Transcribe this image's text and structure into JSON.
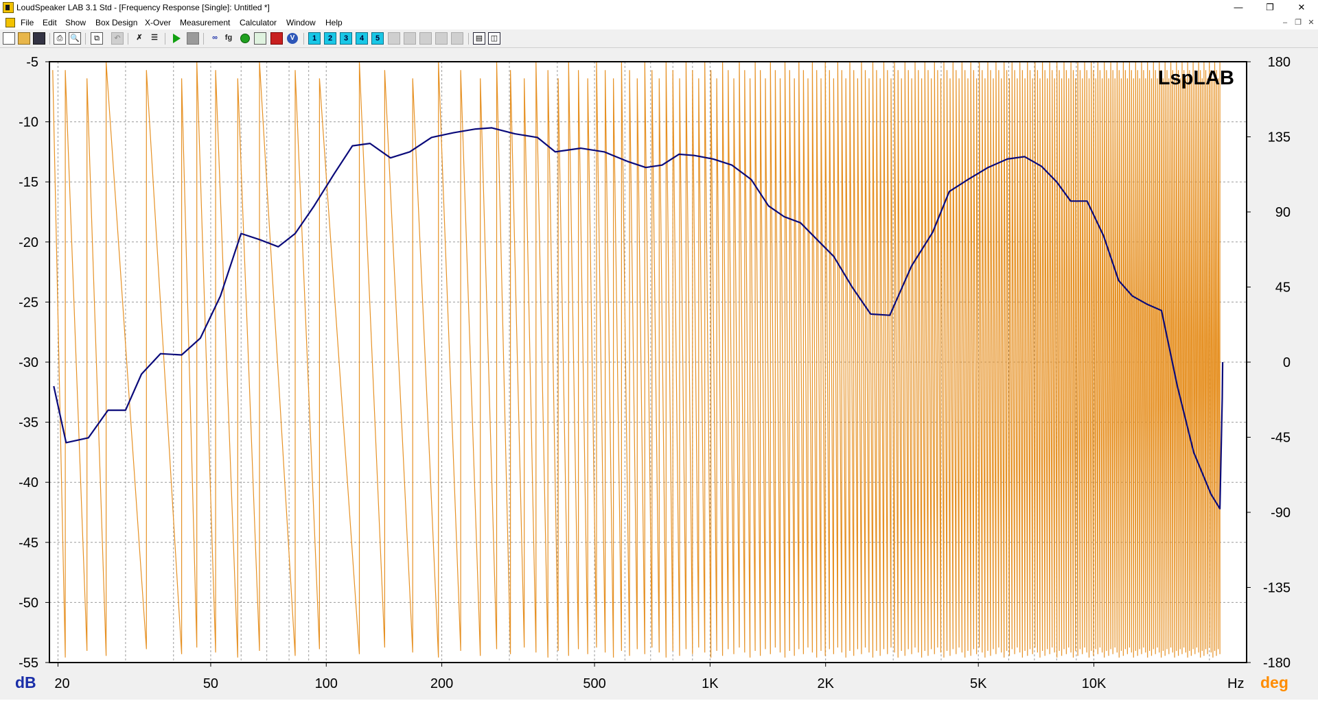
{
  "window": {
    "title": "LoudSpeaker LAB 3.1 Std - [Frequency Response [Single]: Untitled *]",
    "controls": {
      "minimize": "—",
      "restore": "❐",
      "close": "✕"
    }
  },
  "menu": {
    "items": [
      "File",
      "Edit",
      "Show",
      "Box Design",
      "X-Over",
      "Measurement",
      "Calculator",
      "Window",
      "Help"
    ],
    "mdi_controls": {
      "minimize": "–",
      "restore": "❐",
      "close": "✕"
    }
  },
  "toolbar": {
    "icons": [
      "new-icon",
      "open-icon",
      "save-icon",
      "print-icon",
      "print-preview-icon",
      "copy-icon",
      "undo-icon",
      "tools-icon",
      "sliders-icon",
      "play-icon",
      "stop-icon",
      "impedance-icon",
      "fs-icon",
      "circle-icon",
      "step-response-icon",
      "waterfall-icon",
      "v-icon",
      "slot-1",
      "slot-2",
      "slot-3",
      "slot-4",
      "slot-5",
      "slot-6",
      "slot-7",
      "slot-8",
      "slot-9",
      "slot-10",
      "layout-horizontal-icon",
      "layout-vertical-icon"
    ],
    "slot_labels": [
      "1",
      "2",
      "3",
      "4",
      "5"
    ],
    "fg_label": "fg"
  },
  "chart_data": {
    "type": "line",
    "watermark": "LspLAB",
    "x_scale": "log",
    "x_unit": "Hz",
    "xlim": [
      19,
      25000
    ],
    "x_ticks": [
      20,
      50,
      100,
      200,
      500,
      1000,
      2000,
      5000,
      10000
    ],
    "x_tick_labels": [
      "20",
      "50",
      "100",
      "200",
      "500",
      "1K",
      "2K",
      "5K",
      "10K"
    ],
    "y_left_unit": "dB",
    "ylim_left": [
      -55,
      -5
    ],
    "y_left_ticks": [
      -5,
      -10,
      -15,
      -20,
      -25,
      -30,
      -35,
      -40,
      -45,
      -50,
      -55
    ],
    "y_right_unit": "deg",
    "ylim_right": [
      -180,
      180
    ],
    "y_right_ticks": [
      180,
      135,
      90,
      45,
      0,
      -45,
      -90,
      -135,
      -180
    ],
    "grid": true,
    "colors": {
      "magnitude": "#0a0a7a",
      "phase": "#e69124",
      "dB_label": "#1a2ea8",
      "deg_label": "#ff8c00",
      "plot_background": "#ffffff",
      "grid": "#9a9a9a"
    },
    "series": [
      {
        "unit": "dB",
        "axis": "left",
        "points": [
          [
            19.5,
            -32
          ],
          [
            21,
            -36.7
          ],
          [
            24,
            -36.3
          ],
          [
            27,
            -34
          ],
          [
            30,
            -34
          ],
          [
            33,
            -31
          ],
          [
            37,
            -29.3
          ],
          [
            42,
            -29.4
          ],
          [
            47,
            -28
          ],
          [
            53,
            -24.5
          ],
          [
            60,
            -19.3
          ],
          [
            67,
            -19.8
          ],
          [
            75,
            -20.4
          ],
          [
            83,
            -19.3
          ],
          [
            93,
            -17
          ],
          [
            105,
            -14.3
          ],
          [
            117,
            -12
          ],
          [
            130,
            -11.8
          ],
          [
            147,
            -13
          ],
          [
            165,
            -12.5
          ],
          [
            188,
            -11.3
          ],
          [
            215,
            -10.9
          ],
          [
            245,
            -10.6
          ],
          [
            270,
            -10.5
          ],
          [
            310,
            -11
          ],
          [
            355,
            -11.3
          ],
          [
            395,
            -12.5
          ],
          [
            460,
            -12.2
          ],
          [
            530,
            -12.5
          ],
          [
            610,
            -13.3
          ],
          [
            680,
            -13.8
          ],
          [
            750,
            -13.6
          ],
          [
            830,
            -12.7
          ],
          [
            910,
            -12.8
          ],
          [
            1020,
            -13.1
          ],
          [
            1140,
            -13.6
          ],
          [
            1280,
            -14.8
          ],
          [
            1420,
            -17
          ],
          [
            1560,
            -17.9
          ],
          [
            1720,
            -18.4
          ],
          [
            1900,
            -19.8
          ],
          [
            2100,
            -21.2
          ],
          [
            2350,
            -23.8
          ],
          [
            2620,
            -26
          ],
          [
            2940,
            -26.1
          ],
          [
            3350,
            -22
          ],
          [
            3800,
            -19.2
          ],
          [
            4200,
            -15.8
          ],
          [
            4700,
            -14.8
          ],
          [
            5300,
            -13.8
          ],
          [
            5950,
            -13.1
          ],
          [
            6600,
            -12.9
          ],
          [
            7300,
            -13.7
          ],
          [
            8000,
            -15
          ],
          [
            8700,
            -16.6
          ],
          [
            9600,
            -16.6
          ],
          [
            10600,
            -19.5
          ],
          [
            11600,
            -23.2
          ],
          [
            12600,
            -24.5
          ],
          [
            13800,
            -25.2
          ],
          [
            15000,
            -25.7
          ],
          [
            16500,
            -32
          ],
          [
            18200,
            -37.5
          ],
          [
            20200,
            -41
          ],
          [
            21300,
            -42.2
          ],
          [
            21600,
            -33
          ],
          [
            21650,
            -30
          ]
        ]
      },
      {
        "unit": "deg",
        "axis": "right",
        "style": "wrapped phase",
        "crossings": [
          20.9,
          23.8,
          26.7,
          34,
          42,
          46,
          51.5,
          58.8,
          67,
          83,
          96,
          122,
          142,
          168,
          196,
          224,
          252,
          278,
          302,
          328,
          352,
          378,
          402,
          428,
          454,
          480,
          506,
          533,
          560,
          588,
          617,
          646,
          676,
          706,
          737,
          768,
          800,
          833,
          866,
          900,
          934,
          969,
          1005,
          1041,
          1078,
          1115,
          1153,
          1192,
          1231,
          1271,
          1311,
          1352,
          1394,
          1436,
          1479,
          1523,
          1567,
          1612,
          1658,
          1704,
          1751,
          1799,
          1847,
          1896,
          1946,
          1996,
          2047,
          2099,
          2151,
          2204,
          2258,
          2313,
          2368,
          2424,
          2481,
          2538,
          2596,
          2655,
          2715,
          2775,
          2836,
          2898,
          2961,
          3024,
          3088,
          3153,
          3219,
          3285,
          3352,
          3420,
          3489,
          3558,
          3628,
          3699,
          3771,
          3844,
          3917,
          3991,
          4066,
          4142,
          4219,
          4296,
          4375,
          4454,
          4534,
          4615,
          4696,
          4779,
          4862,
          4946,
          5031,
          5117,
          5204,
          5292,
          5380,
          5469,
          5559,
          5651,
          5743,
          5836,
          5930,
          6025,
          6121,
          6217,
          6315,
          6414,
          6514,
          6614,
          6716,
          6818,
          6922,
          7026,
          7132,
          7238,
          7346,
          7454,
          7564,
          7674,
          7786,
          7898,
          8012,
          8127,
          8242,
          8359,
          8477,
          8596,
          8716,
          8837,
          8959,
          9082,
          9206,
          9332,
          9458,
          9586,
          9714,
          9844,
          9975,
          10107,
          10240,
          10375,
          10510,
          10647,
          10785,
          10924,
          11064,
          11206,
          11348,
          11492,
          11637,
          11784,
          11931,
          12080,
          12230,
          12381,
          12534,
          12688,
          12843,
          12999,
          13157,
          13316,
          13476,
          13638,
          13801,
          13965,
          14131,
          14298,
          14467,
          14636,
          14808,
          14980,
          15154,
          15330,
          15507,
          15685,
          15865,
          16046,
          16229,
          16413,
          16599,
          16786,
          16975,
          17165,
          17357,
          17550,
          17745,
          17942,
          18140,
          18339,
          18540,
          18743,
          18947,
          19153,
          19361,
          19570,
          19781,
          19993,
          20207,
          20423,
          20640,
          20859,
          21080,
          21302
        ]
      }
    ]
  }
}
